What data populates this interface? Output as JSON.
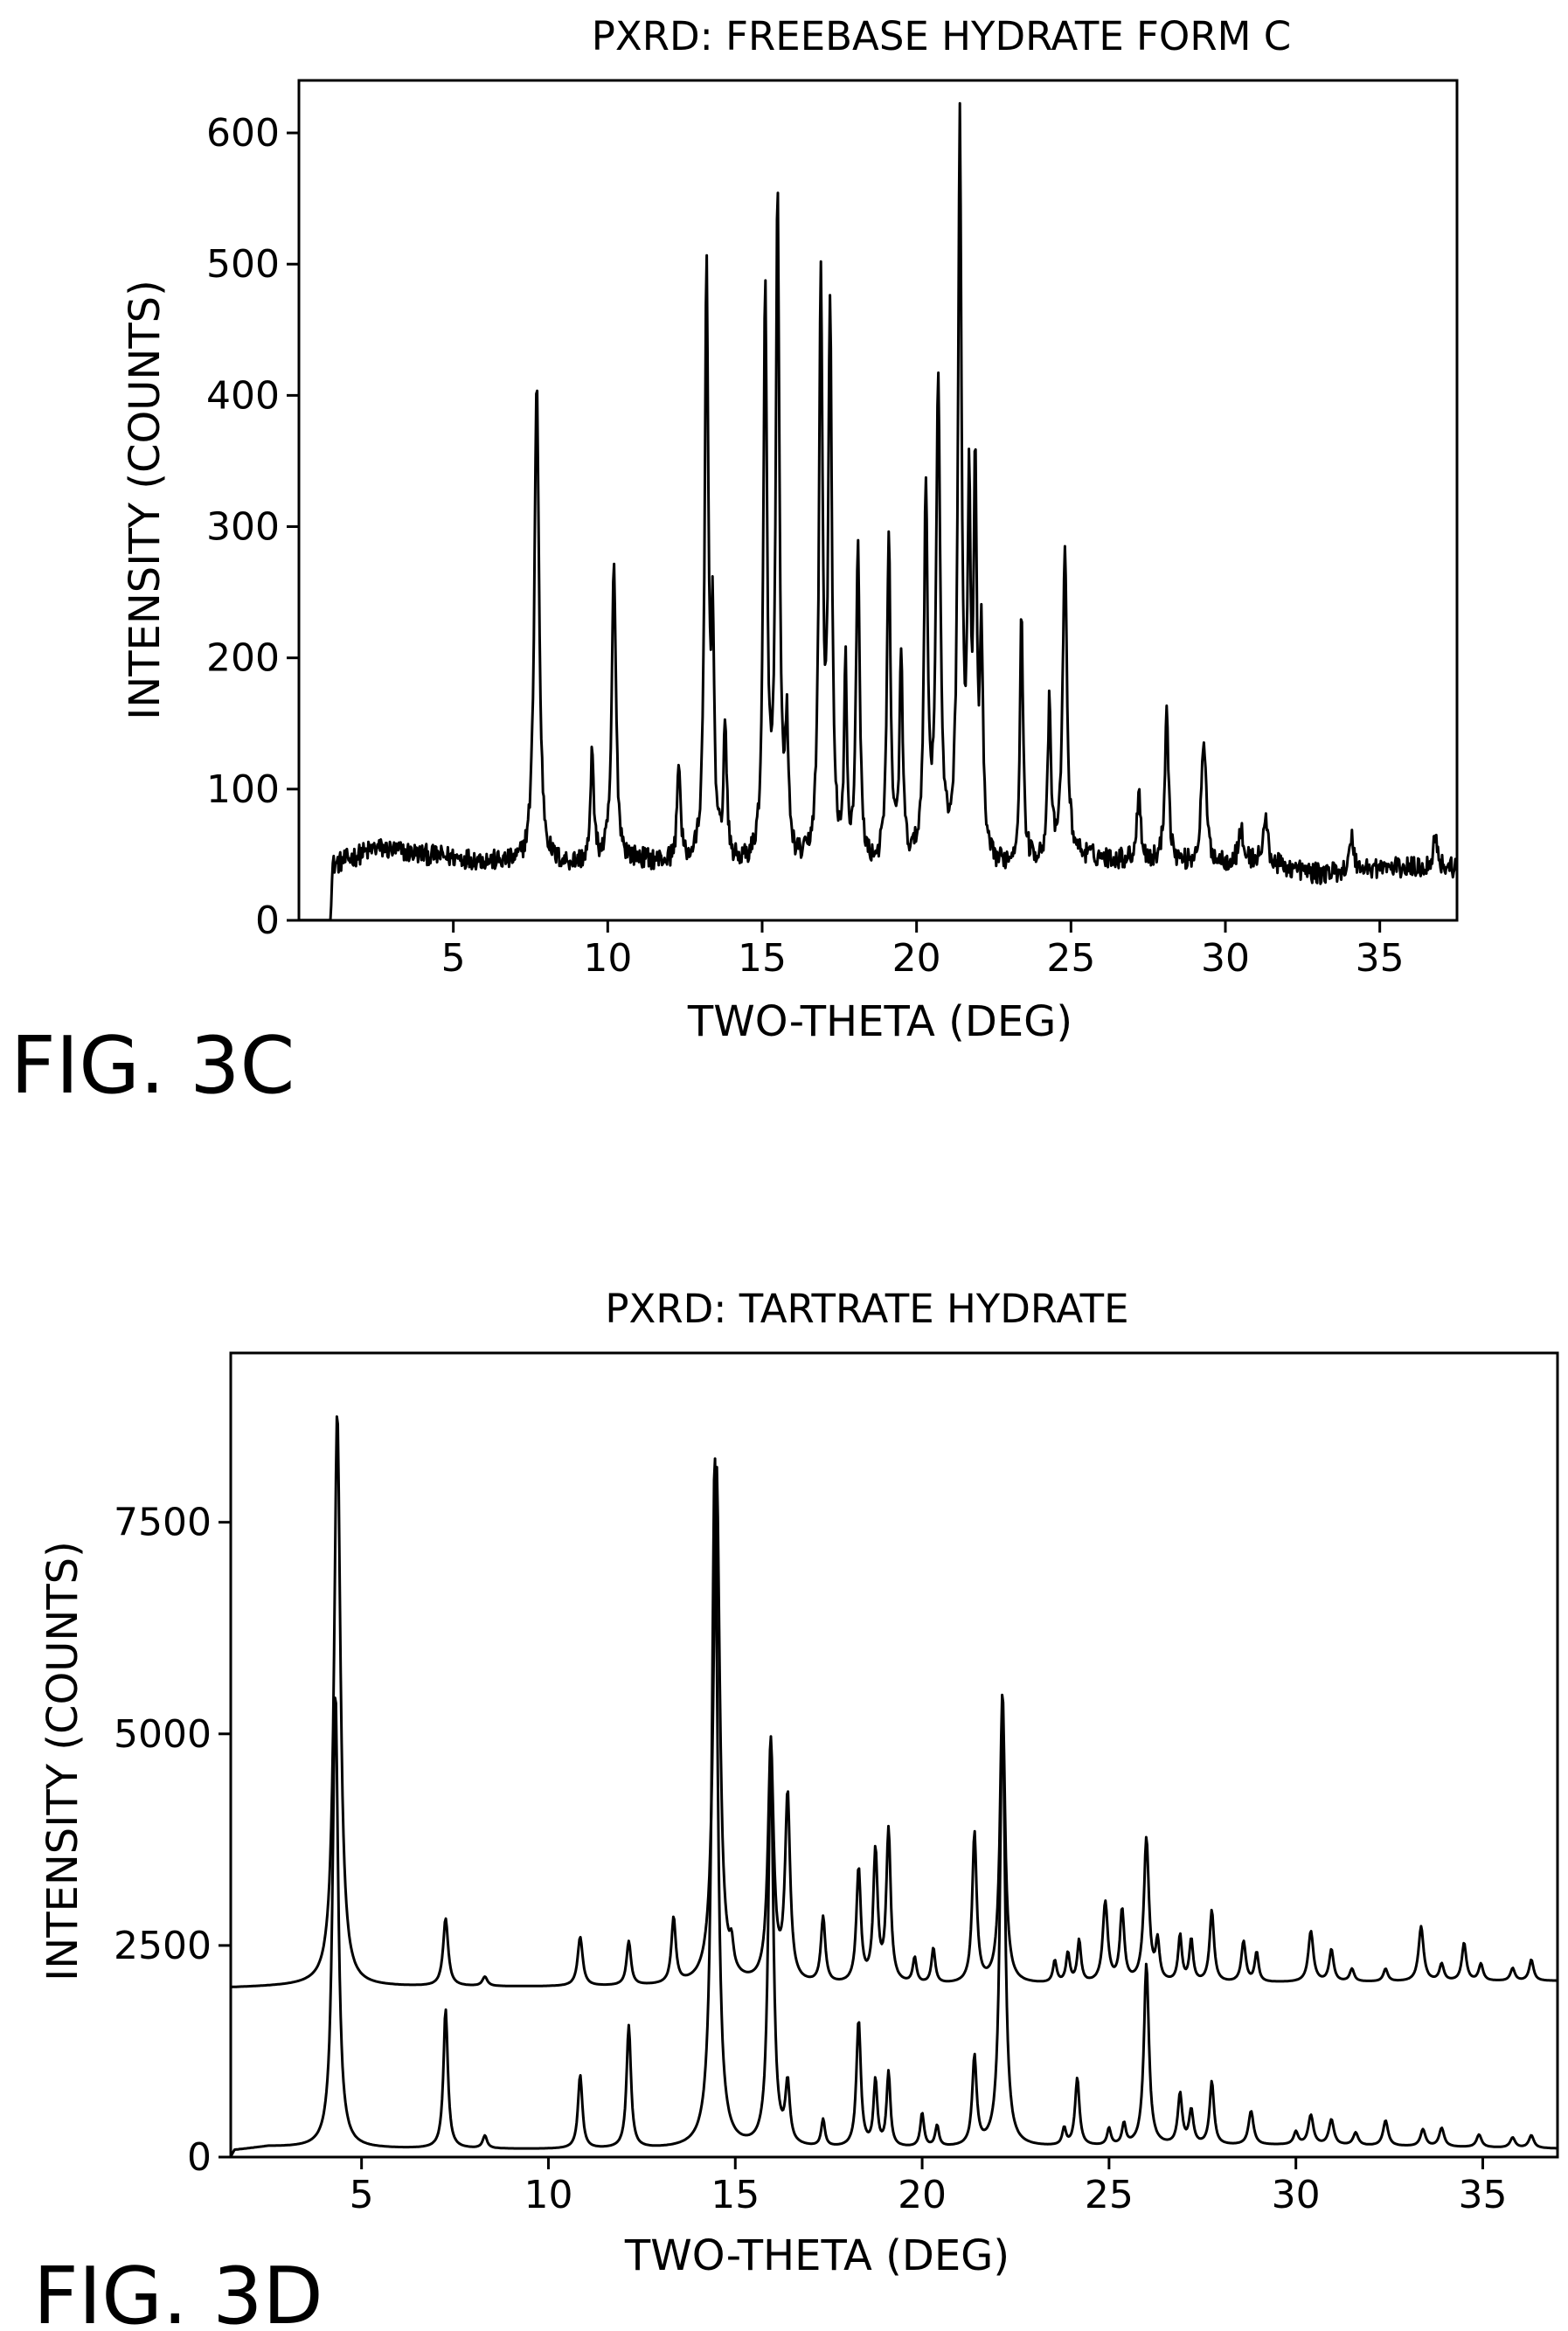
{
  "figures": [
    {
      "label": "FIG. 3C"
    },
    {
      "label": "FIG. 3D"
    }
  ],
  "colors": {
    "line": "#000000",
    "background": "#ffffff"
  },
  "chart_data": [
    {
      "type": "line",
      "title": "PXRD: FREEBASE HYDRATE FORM C",
      "xlabel": "TWO-THETA (DEG)",
      "ylabel": "INTENSITY (COUNTS)",
      "xlim": [
        0,
        37.5
      ],
      "ylim": [
        0,
        640
      ],
      "xticks": [
        5,
        10,
        15,
        20,
        25,
        30,
        35
      ],
      "yticks": [
        0,
        100,
        200,
        300,
        400,
        500,
        600
      ],
      "grid": false,
      "legend": "none",
      "baseline_start": 1.0,
      "series": [
        {
          "baseline": [
            [
              0.5,
              0
            ],
            [
              1.0,
              0
            ],
            [
              1.1,
              42
            ],
            [
              2.5,
              55
            ],
            [
              4.0,
              50
            ],
            [
              6.0,
              45
            ],
            [
              7.5,
              40
            ],
            [
              9.0,
              42
            ],
            [
              11.0,
              45
            ],
            [
              13.0,
              40
            ],
            [
              16.0,
              38
            ],
            [
              18.0,
              36
            ],
            [
              20.0,
              40
            ],
            [
              22.5,
              38
            ],
            [
              25.0,
              48
            ],
            [
              27.0,
              45
            ],
            [
              29.0,
              42
            ],
            [
              31.0,
              45
            ],
            [
              33.0,
              35
            ],
            [
              35.0,
              40
            ],
            [
              37.5,
              40
            ]
          ],
          "noise": 8,
          "peaks": [
            [
              7.7,
              370,
              0.09
            ],
            [
              9.5,
              85,
              0.06
            ],
            [
              10.2,
              225,
              0.08
            ],
            [
              12.3,
              80,
              0.06
            ],
            [
              13.2,
              450,
              0.07
            ],
            [
              13.4,
              160,
              0.06
            ],
            [
              13.8,
              105,
              0.06
            ],
            [
              15.1,
              430,
              0.07
            ],
            [
              15.5,
              500,
              0.07
            ],
            [
              15.8,
              95,
              0.06
            ],
            [
              16.9,
              440,
              0.07
            ],
            [
              17.2,
              415,
              0.07
            ],
            [
              17.7,
              150,
              0.05
            ],
            [
              18.1,
              245,
              0.07
            ],
            [
              19.1,
              245,
              0.07
            ],
            [
              19.5,
              160,
              0.06
            ],
            [
              20.3,
              280,
              0.07
            ],
            [
              20.7,
              365,
              0.08
            ],
            [
              21.4,
              560,
              0.07
            ],
            [
              21.7,
              260,
              0.06
            ],
            [
              21.9,
              280,
              0.06
            ],
            [
              22.1,
              160,
              0.06
            ],
            [
              23.4,
              190,
              0.06
            ],
            [
              24.3,
              115,
              0.06
            ],
            [
              24.8,
              235,
              0.08
            ],
            [
              27.2,
              55,
              0.07
            ],
            [
              28.1,
              120,
              0.07
            ],
            [
              29.3,
              95,
              0.09
            ],
            [
              30.5,
              25,
              0.08
            ],
            [
              31.3,
              35,
              0.08
            ],
            [
              34.1,
              25,
              0.08
            ],
            [
              36.8,
              25,
              0.08
            ]
          ]
        }
      ]
    },
    {
      "type": "line",
      "title": "PXRD: TARTRATE HYDRATE",
      "xlabel": "TWO-THETA (DEG)",
      "ylabel": "INTENSITY (COUNTS)",
      "xlim": [
        1.5,
        37
      ],
      "ylim": [
        0,
        9500
      ],
      "xticks": [
        5,
        10,
        15,
        20,
        25,
        30,
        35
      ],
      "yticks": [
        0,
        2500,
        5000,
        7500
      ],
      "grid": false,
      "legend": "none",
      "series": [
        {
          "offset": 2000,
          "baseline": [
            [
              1.5,
              0
            ],
            [
              3.5,
              20
            ],
            [
              5.0,
              10
            ],
            [
              10.0,
              10
            ],
            [
              15.0,
              15
            ],
            [
              20.0,
              25
            ],
            [
              25.0,
              40
            ],
            [
              30.0,
              60
            ],
            [
              37.0,
              80
            ]
          ],
          "noise": 0,
          "peaks": [
            [
              4.35,
              6800,
              0.1
            ],
            [
              7.25,
              800,
              0.08
            ],
            [
              8.3,
              110,
              0.08
            ],
            [
              10.85,
              580,
              0.08
            ],
            [
              12.15,
              520,
              0.07
            ],
            [
              13.35,
              780,
              0.07
            ],
            [
              14.5,
              6150,
              0.1
            ],
            [
              14.9,
              280,
              0.06
            ],
            [
              15.95,
              2850,
              0.09
            ],
            [
              16.4,
              2200,
              0.08
            ],
            [
              17.35,
              780,
              0.07
            ],
            [
              18.3,
              1350,
              0.07
            ],
            [
              18.75,
              1550,
              0.07
            ],
            [
              19.1,
              1800,
              0.07
            ],
            [
              19.8,
              300,
              0.06
            ],
            [
              20.3,
              420,
              0.06
            ],
            [
              21.4,
              1780,
              0.07
            ],
            [
              22.15,
              3450,
              0.08
            ],
            [
              23.55,
              260,
              0.06
            ],
            [
              23.9,
              350,
              0.06
            ],
            [
              24.2,
              500,
              0.06
            ],
            [
              24.9,
              950,
              0.08
            ],
            [
              25.35,
              850,
              0.07
            ],
            [
              26.0,
              1700,
              0.08
            ],
            [
              26.3,
              450,
              0.06
            ],
            [
              26.9,
              550,
              0.06
            ],
            [
              27.2,
              500,
              0.06
            ],
            [
              27.75,
              850,
              0.07
            ],
            [
              28.6,
              480,
              0.07
            ],
            [
              28.95,
              350,
              0.06
            ],
            [
              30.4,
              600,
              0.08
            ],
            [
              30.95,
              380,
              0.07
            ],
            [
              31.5,
              150,
              0.07
            ],
            [
              32.4,
              150,
              0.07
            ],
            [
              33.35,
              650,
              0.08
            ],
            [
              33.9,
              200,
              0.07
            ],
            [
              34.5,
              450,
              0.07
            ],
            [
              34.95,
              200,
              0.07
            ],
            [
              35.8,
              150,
              0.07
            ],
            [
              36.3,
              250,
              0.07
            ]
          ]
        },
        {
          "offset": 0,
          "baseline": [
            [
              1.5,
              0
            ],
            [
              1.6,
              80
            ],
            [
              2.5,
              120
            ],
            [
              4.0,
              100
            ],
            [
              10.0,
              90
            ],
            [
              15.0,
              90
            ],
            [
              20.0,
              100
            ],
            [
              25.0,
              120
            ],
            [
              30.0,
              140
            ],
            [
              37.0,
              100
            ]
          ],
          "noise": 0,
          "peaks": [
            [
              4.3,
              5400,
              0.09
            ],
            [
              7.25,
              1650,
              0.07
            ],
            [
              8.3,
              150,
              0.07
            ],
            [
              10.85,
              870,
              0.07
            ],
            [
              12.15,
              1450,
              0.07
            ],
            [
              14.45,
              8200,
              0.09
            ],
            [
              15.95,
              4700,
              0.08
            ],
            [
              16.4,
              700,
              0.07
            ],
            [
              17.35,
              320,
              0.06
            ],
            [
              18.3,
              1500,
              0.07
            ],
            [
              18.75,
              780,
              0.06
            ],
            [
              19.1,
              880,
              0.06
            ],
            [
              20.0,
              400,
              0.06
            ],
            [
              20.4,
              250,
              0.06
            ],
            [
              21.4,
              1050,
              0.07
            ],
            [
              22.15,
              5250,
              0.08
            ],
            [
              23.8,
              200,
              0.06
            ],
            [
              24.15,
              800,
              0.07
            ],
            [
              25.0,
              200,
              0.06
            ],
            [
              25.4,
              250,
              0.06
            ],
            [
              26.0,
              2150,
              0.08
            ],
            [
              26.9,
              600,
              0.07
            ],
            [
              27.2,
              400,
              0.07
            ],
            [
              27.75,
              750,
              0.07
            ],
            [
              28.8,
              400,
              0.08
            ],
            [
              30.0,
              150,
              0.07
            ],
            [
              30.4,
              350,
              0.08
            ],
            [
              30.95,
              300,
              0.08
            ],
            [
              31.6,
              150,
              0.08
            ],
            [
              32.4,
              300,
              0.08
            ],
            [
              33.4,
              200,
              0.08
            ],
            [
              33.9,
              220,
              0.08
            ],
            [
              34.9,
              150,
              0.08
            ],
            [
              35.8,
              120,
              0.08
            ],
            [
              36.3,
              150,
              0.08
            ]
          ]
        }
      ]
    }
  ]
}
